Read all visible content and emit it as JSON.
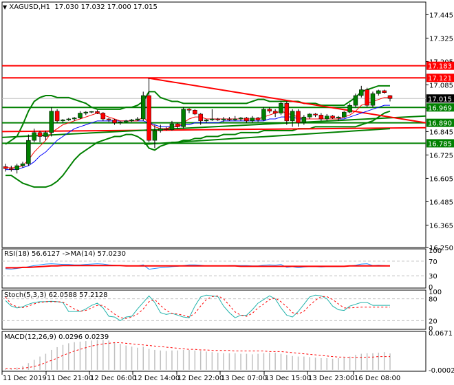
{
  "header": {
    "symbol": "XAGUSD,H1",
    "ohlc": "17.030 17.032 17.000 17.015",
    "menu_icon": "triangle-down-icon"
  },
  "indicators": {
    "rsi_label": "RSI(18) 56.6127  ->MA(14) 57.0230",
    "stoch_label": "Stoch(5,3,3) 62.0588 57.2128",
    "macd_label": "MACD(12,26,9) 0.0296 0.0239"
  },
  "colors": {
    "bull": "#008000",
    "bear": "#ff0000",
    "resistance": "#ff0000",
    "support": "#008000",
    "price_tag": "#000000",
    "ma_fast": "#ff0000",
    "ma_slow": "#0000ff",
    "rsi": "#1e90ff",
    "stoch_main": "#20b2aa",
    "signal": "#ff0000",
    "macd_hist": "#c0c0c0"
  },
  "chart_data": [
    {
      "type": "candlestick",
      "title": "XAGUSD,H1",
      "ylim": [
        16.25,
        17.51
      ],
      "y_ticks": [
        "17.445",
        "17.325",
        "17.205",
        "17.085",
        "16.965",
        "16.845",
        "16.725",
        "16.605",
        "16.485",
        "16.365",
        "16.250"
      ],
      "x_ticks": [
        "11 Dec 2019",
        "11 Dec 21:00",
        "12 Dec 06:00",
        "12 Dec 14:00",
        "12 Dec 22:00",
        "13 Dec 07:00",
        "13 Dec 15:00",
        "13 Dec 23:00",
        "16 Dec 08:00"
      ],
      "current_price": "17.015",
      "levels": [
        {
          "value": "17.183",
          "color": "#ff0000"
        },
        {
          "value": "17.121",
          "color": "#ff0000"
        },
        {
          "value": "16.969",
          "color": "#008000"
        },
        {
          "value": "16.890",
          "color": "#008000"
        },
        {
          "value": "16.785",
          "color": "#008000"
        }
      ],
      "candles": [
        [
          16.665,
          16.68,
          16.64,
          16.655
        ],
        [
          16.655,
          16.67,
          16.64,
          16.65
        ],
        [
          16.65,
          16.68,
          16.63,
          16.67
        ],
        [
          16.67,
          16.69,
          16.66,
          16.68
        ],
        [
          16.68,
          16.83,
          16.67,
          16.8
        ],
        [
          16.8,
          16.86,
          16.79,
          16.84
        ],
        [
          16.84,
          16.85,
          16.79,
          16.82
        ],
        [
          16.82,
          16.85,
          16.8,
          16.84
        ],
        [
          16.84,
          16.97,
          16.82,
          16.95
        ],
        [
          16.95,
          16.96,
          16.89,
          16.9
        ],
        [
          16.9,
          16.91,
          16.89,
          16.905
        ],
        [
          16.905,
          16.915,
          16.9,
          16.91
        ],
        [
          16.91,
          16.92,
          16.9,
          16.915
        ],
        [
          16.915,
          16.95,
          16.91,
          16.94
        ],
        [
          16.94,
          16.95,
          16.93,
          16.945
        ],
        [
          16.945,
          16.95,
          16.94,
          16.948
        ],
        [
          16.948,
          16.955,
          16.935,
          16.94
        ],
        [
          16.94,
          16.945,
          16.9,
          16.91
        ],
        [
          16.91,
          16.915,
          16.895,
          16.905
        ],
        [
          16.905,
          16.91,
          16.88,
          16.89
        ],
        [
          16.89,
          16.9,
          16.88,
          16.895
        ],
        [
          16.895,
          16.905,
          16.89,
          16.9
        ],
        [
          16.9,
          16.91,
          16.895,
          16.905
        ],
        [
          16.905,
          16.92,
          16.9,
          16.91
        ],
        [
          16.91,
          17.05,
          16.9,
          17.03
        ],
        [
          17.03,
          17.12,
          16.79,
          16.8
        ],
        [
          16.8,
          16.88,
          16.76,
          16.85
        ],
        [
          16.85,
          16.88,
          16.84,
          16.86
        ],
        [
          16.86,
          16.87,
          16.85,
          16.855
        ],
        [
          16.855,
          16.9,
          16.85,
          16.885
        ],
        [
          16.885,
          16.89,
          16.86,
          16.87
        ],
        [
          16.87,
          16.97,
          16.86,
          16.96
        ],
        [
          16.96,
          16.965,
          16.94,
          16.955
        ],
        [
          16.955,
          16.96,
          16.93,
          16.935
        ],
        [
          16.935,
          16.94,
          16.88,
          16.9
        ],
        [
          16.9,
          16.91,
          16.89,
          16.905
        ],
        [
          16.905,
          16.96,
          16.9,
          16.91
        ],
        [
          16.91,
          16.915,
          16.9,
          16.905
        ],
        [
          16.905,
          16.92,
          16.895,
          16.91
        ],
        [
          16.91,
          16.92,
          16.9,
          16.905
        ],
        [
          16.905,
          16.925,
          16.9,
          16.91
        ],
        [
          16.91,
          16.92,
          16.9,
          16.915
        ],
        [
          16.915,
          16.92,
          16.89,
          16.9
        ],
        [
          16.9,
          16.925,
          16.89,
          16.915
        ],
        [
          16.915,
          16.92,
          16.895,
          16.905
        ],
        [
          16.905,
          16.97,
          16.9,
          16.96
        ],
        [
          16.96,
          16.97,
          16.94,
          16.95
        ],
        [
          16.95,
          16.96,
          16.92,
          16.94
        ],
        [
          16.94,
          17.0,
          16.93,
          16.99
        ],
        [
          16.99,
          17.0,
          16.88,
          16.9
        ],
        [
          16.9,
          16.96,
          16.87,
          16.95
        ],
        [
          16.95,
          16.96,
          16.87,
          16.89
        ],
        [
          16.89,
          16.93,
          16.88,
          16.92
        ],
        [
          16.92,
          16.94,
          16.91,
          16.935
        ],
        [
          16.935,
          16.94,
          16.92,
          16.93
        ],
        [
          16.93,
          16.94,
          16.9,
          16.91
        ],
        [
          16.91,
          16.935,
          16.9,
          16.925
        ],
        [
          16.925,
          16.93,
          16.91,
          16.915
        ],
        [
          16.915,
          16.925,
          16.9,
          16.92
        ],
        [
          16.92,
          16.95,
          16.915,
          16.945
        ],
        [
          16.945,
          16.99,
          16.94,
          16.98
        ],
        [
          16.98,
          17.04,
          16.97,
          17.03
        ],
        [
          17.03,
          17.08,
          17.02,
          17.06
        ],
        [
          17.06,
          17.07,
          16.97,
          16.98
        ],
        [
          16.98,
          17.05,
          16.97,
          17.04
        ],
        [
          17.04,
          17.06,
          17.03,
          17.055
        ],
        [
          17.055,
          17.06,
          17.04,
          17.045
        ],
        [
          17.03,
          17.032,
          17.0,
          17.015
        ]
      ],
      "bollinger_upper": [
        16.78,
        16.8,
        16.82,
        16.88,
        16.95,
        17.0,
        17.02,
        17.03,
        17.03,
        17.02,
        17.02,
        17.02,
        17.01,
        17.0,
        16.99,
        16.97,
        16.96,
        16.96,
        16.96,
        16.96,
        16.96,
        16.97,
        16.97,
        16.98,
        17.0,
        17.05,
        17.05,
        17.02,
        17.01,
        17.0,
        17.0,
        16.99,
        16.99,
        16.99,
        16.99,
        16.99,
        16.99,
        16.99,
        16.99,
        16.99,
        16.99,
        16.99,
        16.99,
        17.0,
        17.01,
        17.01,
        17.0,
        17.0,
        17.0,
        17.0,
        17.0,
        17.0,
        16.99,
        16.99,
        16.99,
        16.98,
        16.98,
        16.98,
        16.98,
        16.98,
        17.0,
        17.02,
        17.05,
        17.06,
        17.07,
        17.08,
        17.08,
        17.08
      ],
      "bollinger_lower": [
        16.62,
        16.62,
        16.6,
        16.58,
        16.57,
        16.56,
        16.56,
        16.56,
        16.57,
        16.59,
        16.62,
        16.66,
        16.7,
        16.73,
        16.75,
        16.77,
        16.79,
        16.8,
        16.81,
        16.82,
        16.82,
        16.83,
        16.83,
        16.82,
        16.8,
        16.76,
        16.75,
        16.77,
        16.78,
        16.79,
        16.79,
        16.8,
        16.8,
        16.81,
        16.81,
        16.82,
        16.82,
        16.82,
        16.83,
        16.83,
        16.83,
        16.84,
        16.84,
        16.84,
        16.84,
        16.85,
        16.85,
        16.85,
        16.85,
        16.85,
        16.85,
        16.86,
        16.86,
        16.86,
        16.87,
        16.87,
        16.87,
        16.87,
        16.87,
        16.87,
        16.87,
        16.87,
        16.88,
        16.89,
        16.9,
        16.92,
        16.94,
        16.95
      ],
      "ma_fast": [
        16.66,
        16.66,
        16.66,
        16.67,
        16.7,
        16.74,
        16.77,
        16.8,
        16.84,
        16.86,
        16.88,
        16.89,
        16.9,
        16.91,
        16.92,
        16.93,
        16.94,
        16.93,
        16.92,
        16.91,
        16.9,
        16.9,
        16.9,
        16.9,
        16.92,
        16.89,
        16.87,
        16.86,
        16.86,
        16.87,
        16.87,
        16.89,
        16.91,
        16.92,
        16.92,
        16.91,
        16.91,
        16.91,
        16.91,
        16.91,
        16.91,
        16.91,
        16.91,
        16.91,
        16.91,
        16.92,
        16.93,
        16.94,
        16.95,
        16.94,
        16.93,
        16.92,
        16.91,
        16.91,
        16.91,
        16.91,
        16.91,
        16.91,
        16.91,
        16.92,
        16.93,
        16.95,
        16.98,
        16.99,
        17.0,
        17.01,
        17.02,
        17.02
      ],
      "ma_slow": [
        16.65,
        16.65,
        16.65,
        16.66,
        16.67,
        16.69,
        16.72,
        16.74,
        16.77,
        16.8,
        16.82,
        16.84,
        16.86,
        16.87,
        16.88,
        16.89,
        16.9,
        16.9,
        16.9,
        16.9,
        16.9,
        16.9,
        16.9,
        16.9,
        16.9,
        16.89,
        16.88,
        16.87,
        16.87,
        16.87,
        16.87,
        16.88,
        16.88,
        16.89,
        16.89,
        16.89,
        16.89,
        16.89,
        16.9,
        16.9,
        16.9,
        16.9,
        16.9,
        16.9,
        16.9,
        16.9,
        16.91,
        16.91,
        16.92,
        16.92,
        16.92,
        16.91,
        16.91,
        16.91,
        16.91,
        16.91,
        16.91,
        16.91,
        16.91,
        16.91,
        16.92,
        16.93,
        16.94,
        16.95,
        16.96,
        16.97,
        16.98,
        16.98
      ]
    },
    {
      "type": "line",
      "title": "RSI(18) 56.6127 ->MA(14) 57.0230",
      "ylim": [
        0,
        100
      ],
      "y_ticks": [
        "100",
        "70",
        "30",
        "0"
      ],
      "levels": [
        70,
        30
      ],
      "rsi": [
        49,
        48,
        50,
        52,
        55,
        58,
        60,
        62,
        63,
        62,
        61,
        61,
        60,
        60,
        61,
        62,
        63,
        62,
        60,
        59,
        58,
        58,
        57,
        57,
        60,
        48,
        50,
        52,
        53,
        55,
        56,
        58,
        60,
        60,
        59,
        57,
        57,
        57,
        57,
        58,
        58,
        58,
        58,
        57,
        57,
        59,
        60,
        59,
        61,
        53,
        55,
        52,
        54,
        55,
        55,
        54,
        55,
        55,
        55,
        56,
        57,
        59,
        62,
        63,
        58,
        59,
        58,
        57
      ],
      "ma": [
        52,
        52,
        52,
        53,
        53,
        54,
        55,
        56,
        57,
        57,
        58,
        58,
        58,
        58,
        58,
        58,
        58,
        58,
        58,
        58,
        58,
        57,
        57,
        57,
        57,
        57,
        57,
        57,
        57,
        57,
        57,
        57,
        57,
        57,
        57,
        57,
        57,
        57,
        57,
        57,
        57,
        56,
        56,
        56,
        56,
        56,
        56,
        56,
        56,
        56,
        56,
        56,
        56,
        56,
        56,
        56,
        56,
        56,
        56,
        56,
        57,
        57,
        57,
        57,
        57,
        57,
        57,
        57
      ]
    },
    {
      "type": "line",
      "title": "Stoch(5,3,3) 62.0588 57.2128",
      "ylim": [
        0,
        100
      ],
      "y_ticks": [
        "100",
        "80",
        "20",
        "0"
      ],
      "levels": [
        80,
        20
      ],
      "main": [
        75,
        60,
        55,
        58,
        65,
        70,
        72,
        72,
        73,
        72,
        70,
        45,
        45,
        45,
        52,
        62,
        68,
        55,
        32,
        30,
        20,
        30,
        32,
        52,
        70,
        88,
        70,
        42,
        37,
        40,
        35,
        30,
        28,
        60,
        85,
        90,
        88,
        86,
        60,
        42,
        28,
        35,
        35,
        50,
        68,
        78,
        88,
        80,
        55,
        35,
        30,
        45,
        65,
        85,
        90,
        88,
        80,
        60,
        50,
        48,
        60,
        65,
        70,
        70,
        62,
        62,
        62,
        62
      ],
      "signal": [
        85,
        65,
        58,
        56,
        60,
        66,
        70,
        72,
        72,
        72,
        71,
        62,
        52,
        46,
        48,
        55,
        62,
        62,
        50,
        38,
        28,
        26,
        30,
        38,
        52,
        72,
        78,
        62,
        48,
        40,
        38,
        35,
        30,
        40,
        60,
        78,
        86,
        88,
        80,
        62,
        44,
        35,
        32,
        40,
        55,
        66,
        78,
        82,
        72,
        58,
        42,
        38,
        46,
        62,
        76,
        86,
        86,
        78,
        66,
        55,
        55,
        56,
        57,
        57,
        57,
        57,
        57,
        57
      ]
    },
    {
      "type": "bar",
      "title": "MACD(12,26,9) 0.0296 0.0239",
      "ylim": [
        -0.0002,
        0.0671
      ],
      "y_ticks": [
        "0.0671",
        "-0.0002"
      ],
      "histogram": [
        0.001,
        0.002,
        0.004,
        0.007,
        0.012,
        0.018,
        0.024,
        0.029,
        0.036,
        0.041,
        0.045,
        0.048,
        0.05,
        0.051,
        0.052,
        0.053,
        0.054,
        0.054,
        0.053,
        0.05,
        0.047,
        0.044,
        0.042,
        0.04,
        0.042,
        0.038,
        0.036,
        0.035,
        0.034,
        0.035,
        0.035,
        0.036,
        0.036,
        0.035,
        0.034,
        0.033,
        0.032,
        0.031,
        0.03,
        0.03,
        0.03,
        0.029,
        0.029,
        0.028,
        0.029,
        0.03,
        0.031,
        0.031,
        0.029,
        0.027,
        0.025,
        0.024,
        0.024,
        0.023,
        0.022,
        0.021,
        0.021,
        0.02,
        0.021,
        0.022,
        0.024,
        0.027,
        0.029,
        0.03,
        0.03,
        0.031,
        0.032,
        0.0296
      ],
      "signal": [
        0.002,
        0.002,
        0.002,
        0.003,
        0.004,
        0.006,
        0.009,
        0.013,
        0.017,
        0.021,
        0.026,
        0.03,
        0.034,
        0.037,
        0.04,
        0.043,
        0.045,
        0.047,
        0.048,
        0.049,
        0.049,
        0.048,
        0.047,
        0.046,
        0.045,
        0.044,
        0.043,
        0.042,
        0.041,
        0.04,
        0.039,
        0.038,
        0.037,
        0.037,
        0.036,
        0.036,
        0.035,
        0.035,
        0.035,
        0.035,
        0.034,
        0.034,
        0.034,
        0.034,
        0.034,
        0.034,
        0.033,
        0.033,
        0.033,
        0.032,
        0.031,
        0.03,
        0.029,
        0.028,
        0.027,
        0.026,
        0.025,
        0.024,
        0.023,
        0.023,
        0.022,
        0.022,
        0.022,
        0.023,
        0.023,
        0.024,
        0.024,
        0.0239
      ]
    }
  ]
}
